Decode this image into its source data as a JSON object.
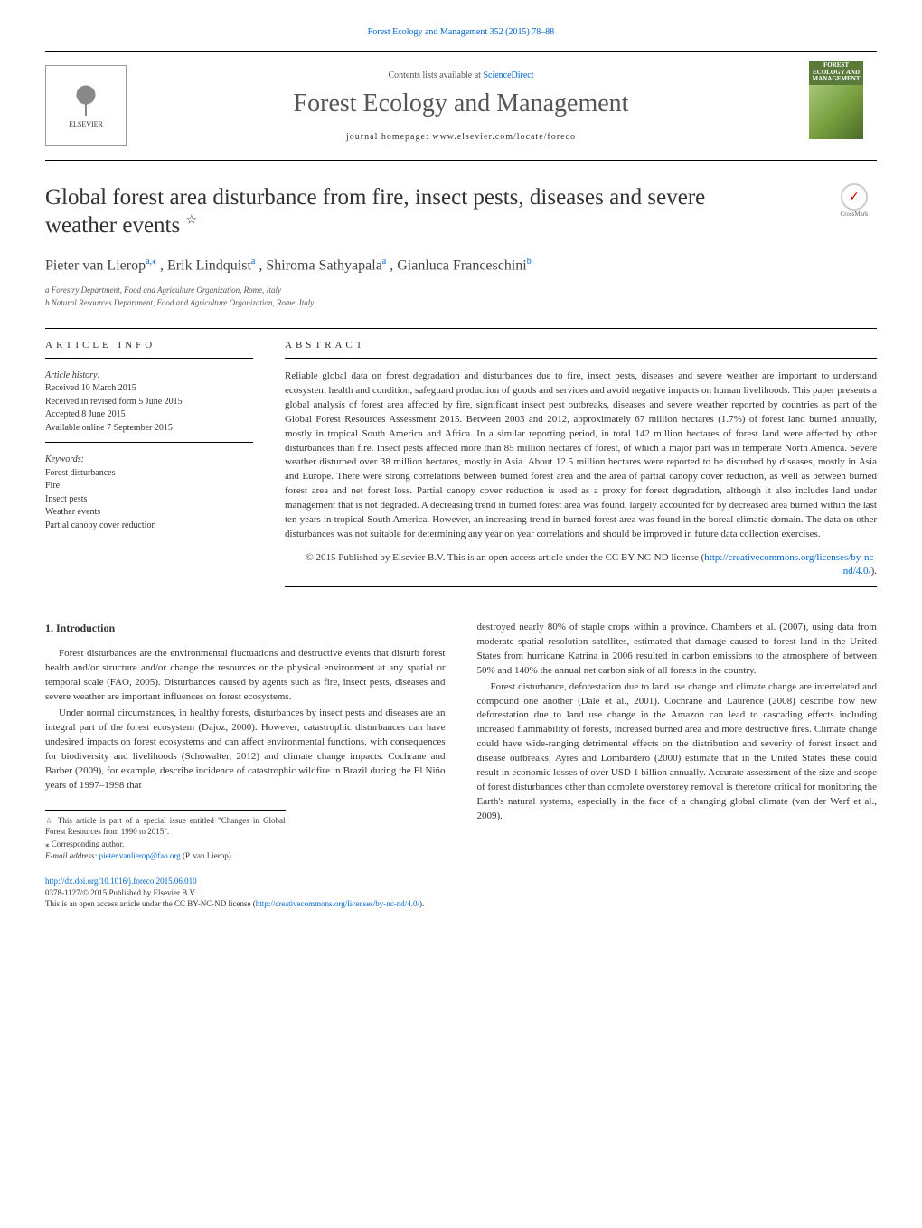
{
  "header": {
    "top_link": "Forest Ecology and Management 352 (2015) 78–88",
    "contents_prefix": "Contents lists available at ",
    "contents_link": "ScienceDirect",
    "journal_name": "Forest Ecology and Management",
    "homepage_prefix": "journal homepage: ",
    "homepage": "www.elsevier.com/locate/foreco",
    "publisher": "ELSEVIER",
    "cover_line1": "FOREST",
    "cover_line2": "ECOLOGY AND",
    "cover_line3": "MANAGEMENT",
    "crossmark": "CrossMark"
  },
  "title": {
    "line1": "Global forest area disturbance from fire, insect pests, diseases and severe",
    "line2_pre": "weather events ",
    "star": "☆"
  },
  "authors_html": "Pieter van Lierop",
  "authors": {
    "a1": "Pieter van Lierop",
    "a1_sup": "a,⁎",
    "a2": ", Erik Lindquist",
    "a2_sup": "a",
    "a3": ", Shiroma Sathyapala",
    "a3_sup": "a",
    "a4": ", Gianluca Franceschini",
    "a4_sup": "b"
  },
  "affiliations": {
    "a": "a Forestry Department, Food and Agriculture Organization, Rome, Italy",
    "b": "b Natural Resources Department, Food and Agriculture Organization, Rome, Italy"
  },
  "info": {
    "section_label": "article info",
    "history_head": "Article history:",
    "received": "Received 10 March 2015",
    "revised": "Received in revised form 5 June 2015",
    "accepted": "Accepted 8 June 2015",
    "available": "Available online 7 September 2015",
    "keywords_head": "Keywords:",
    "kw1": "Forest disturbances",
    "kw2": "Fire",
    "kw3": "Insect pests",
    "kw4": "Weather events",
    "kw5": "Partial canopy cover reduction"
  },
  "abstract": {
    "section_label": "abstract",
    "text": "Reliable global data on forest degradation and disturbances due to fire, insect pests, diseases and severe weather are important to understand ecosystem health and condition, safeguard production of goods and services and avoid negative impacts on human livelihoods. This paper presents a global analysis of forest area affected by fire, significant insect pest outbreaks, diseases and severe weather reported by countries as part of the Global Forest Resources Assessment 2015. Between 2003 and 2012, approximately 67 million hectares (1.7%) of forest land burned annually, mostly in tropical South America and Africa. In a similar reporting period, in total 142 million hectares of forest land were affected by other disturbances than fire. Insect pests affected more than 85 million hectares of forest, of which a major part was in temperate North America. Severe weather disturbed over 38 million hectares, mostly in Asia. About 12.5 million hectares were reported to be disturbed by diseases, mostly in Asia and Europe. There were strong correlations between burned forest area and the area of partial canopy cover reduction, as well as between burned forest area and net forest loss. Partial canopy cover reduction is used as a proxy for forest degradation, although it also includes land under management that is not degraded. A decreasing trend in burned forest area was found, largely accounted for by decreased area burned within the last ten years in tropical South America. However, an increasing trend in burned forest area was found in the boreal climatic domain. The data on other disturbances was not suitable for determining any year on year correlations and should be improved in future data collection exercises.",
    "copyright": "© 2015 Published by Elsevier B.V. This is an open access article under the CC BY-NC-ND license (",
    "copyright_link": "http://creativecommons.org/licenses/by-nc-nd/4.0/",
    "copyright_close": ")."
  },
  "body": {
    "sec1": "1. Introduction",
    "p1": "Forest disturbances are the environmental fluctuations and destructive events that disturb forest health and/or structure and/or change the resources or the physical environment at any spatial or temporal scale (FAO, 2005). Disturbances caused by agents such as fire, insect pests, diseases and severe weather are important influences on forest ecosystems.",
    "p2": "Under normal circumstances, in healthy forests, disturbances by insect pests and diseases are an integral part of the forest ecosystem (Dajoz, 2000). However, catastrophic disturbances can have undesired impacts on forest ecosystems and can affect environmental functions, with consequences for biodiversity and livelihoods (Schowalter, 2012) and climate change impacts. Cochrane and Barber (2009), for example, describe incidence of catastrophic wildfire in Brazil during the El Niño years of 1997–1998 that",
    "p3": "destroyed nearly 80% of staple crops within a province. Chambers et al. (2007), using data from moderate spatial resolution satellites, estimated that damage caused to forest land in the United States from hurricane Katrina in 2006 resulted in carbon emissions to the atmosphere of between 50% and 140% the annual net carbon sink of all forests in the country.",
    "p4": "Forest disturbance, deforestation due to land use change and climate change are interrelated and compound one another (Dale et al., 2001). Cochrane and Laurence (2008) describe how new deforestation due to land use change in the Amazon can lead to cascading effects including increased flammability of forests, increased burned area and more destructive fires. Climate change could have wide-ranging detrimental effects on the distribution and severity of forest insect and disease outbreaks; Ayres and Lombardero (2000) estimate that in the United States these could result in economic losses of over USD 1 billion annually. Accurate assessment of the size and scope of forest disturbances other than complete overstorey removal is therefore critical for monitoring the Earth's natural systems, especially in the face of a changing global climate (van der Werf et al., 2009)."
  },
  "footnotes": {
    "f1": "☆ This article is part of a special issue entitled \"Changes in Global Forest Resources from 1990 to 2015\".",
    "f2": "⁎ Corresponding author.",
    "f3_pre": "E-mail address: ",
    "f3_link": "pieter.vanlierop@fao.org",
    "f3_post": " (P. van Lierop)."
  },
  "bottom": {
    "doi": "http://dx.doi.org/10.1016/j.foreco.2015.06.010",
    "issn": "0378-1127/© 2015 Published by Elsevier B.V.",
    "license_pre": "This is an open access article under the CC BY-NC-ND license (",
    "license_link": "http://creativecommons.org/licenses/by-nc-nd/4.0/",
    "license_post": ")."
  }
}
